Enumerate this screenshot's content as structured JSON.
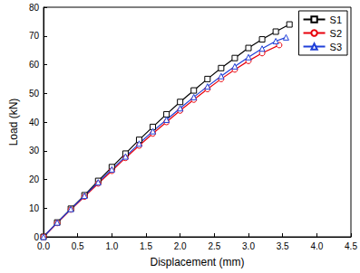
{
  "chart_data": {
    "type": "line",
    "x_label": "Displacement (mm)",
    "y_label": "Load (kN)",
    "xlim": [
      0,
      4.5
    ],
    "xticks": [
      {
        "value": 0,
        "label": "0.0"
      },
      {
        "value": 0.5,
        "label": "0.5"
      },
      {
        "value": 1,
        "label": "1.0"
      },
      {
        "value": 1.5,
        "label": "1.5"
      },
      {
        "value": 2,
        "label": "2.0"
      },
      {
        "value": 2.5,
        "label": "2.5"
      },
      {
        "value": 3,
        "label": "3.0"
      },
      {
        "value": 3.5,
        "label": "3.5"
      },
      {
        "value": 4,
        "label": "4.0"
      },
      {
        "value": 4.5,
        "label": "4.5"
      }
    ],
    "ylim": [
      0,
      80
    ],
    "yticks": [
      0,
      10,
      20,
      30,
      40,
      50,
      60,
      70,
      80
    ],
    "grid": false,
    "legend": "top-right",
    "series": [
      {
        "name": "S1",
        "color": "#000000",
        "marker": "square",
        "x": [
          0,
          0.2,
          0.4,
          0.6,
          0.8,
          1.0,
          1.2,
          1.4,
          1.6,
          1.8,
          2.0,
          2.2,
          2.4,
          2.6,
          2.8,
          3.0,
          3.2,
          3.4,
          3.6
        ],
        "values": [
          0,
          5,
          9.8,
          14.5,
          19.5,
          24.3,
          29,
          33.8,
          38.3,
          42.7,
          47,
          51,
          55,
          58.8,
          62.3,
          65.8,
          68.8,
          71.5,
          74
        ]
      },
      {
        "name": "S2",
        "color": "#e8000b",
        "marker": "circle",
        "x": [
          0,
          0.2,
          0.4,
          0.6,
          0.8,
          1.0,
          1.2,
          1.4,
          1.6,
          1.8,
          2.0,
          2.2,
          2.4,
          2.6,
          2.8,
          3.0,
          3.2,
          3.45
        ],
        "values": [
          0,
          4.8,
          9.5,
          14,
          18.6,
          23,
          27.5,
          31.8,
          36,
          40,
          44,
          47.8,
          51.5,
          55,
          58.3,
          61.3,
          64,
          66.8
        ]
      },
      {
        "name": "S3",
        "color": "#1f3fd8",
        "marker": "triangle",
        "x": [
          0,
          0.2,
          0.4,
          0.6,
          0.8,
          1.0,
          1.2,
          1.4,
          1.6,
          1.8,
          2.0,
          2.2,
          2.4,
          2.6,
          2.8,
          3.0,
          3.2,
          3.4,
          3.55
        ],
        "values": [
          0,
          5,
          9.7,
          14.3,
          19,
          23.5,
          28,
          32.5,
          36.8,
          40.8,
          44.8,
          48.7,
          52.4,
          56,
          59.4,
          62.6,
          65.6,
          68.2,
          69.5
        ]
      }
    ]
  }
}
